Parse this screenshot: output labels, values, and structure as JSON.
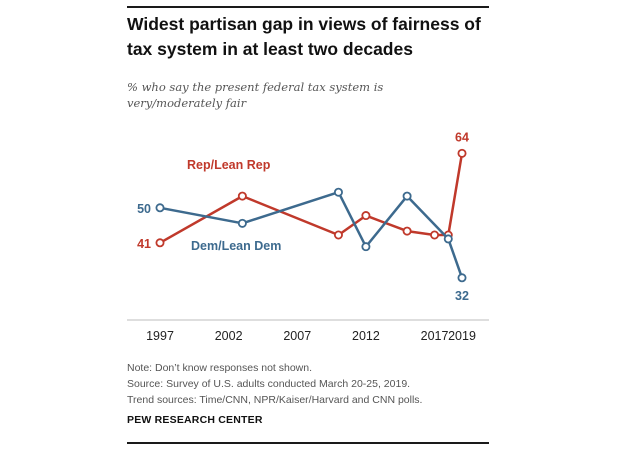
{
  "chart_data": {
    "type": "line",
    "title": "Widest partisan gap in views of fairness of tax system in at least two decades",
    "subtitle": "% who say the present federal tax system is very/moderately fair",
    "x_tick_labels": [
      "1997",
      "2002",
      "2007",
      "2012",
      "2017",
      "2019"
    ],
    "xlim": [
      1997,
      2019
    ],
    "ylim": [
      25,
      70
    ],
    "grid": false,
    "legend": "inline labels",
    "series": [
      {
        "name": "Rep/Lean Rep",
        "color": "#c0392b",
        "x": [
          1997,
          2003,
          2010,
          2012,
          2015,
          2017,
          2018,
          2019
        ],
        "y": [
          41,
          53,
          43,
          48,
          44,
          43,
          43,
          64
        ]
      },
      {
        "name": "Dem/Lean Dem",
        "color": "#3d6a8e",
        "x": [
          1997,
          2003,
          2010,
          2012,
          2015,
          2018,
          2019
        ],
        "y": [
          50,
          46,
          54,
          40,
          53,
          42,
          32
        ]
      }
    ],
    "data_labels": [
      {
        "series": 0,
        "point": 0,
        "text": "41",
        "anchor": "left"
      },
      {
        "series": 0,
        "point": 7,
        "text": "64",
        "anchor": "above"
      },
      {
        "series": 1,
        "point": 0,
        "text": "50",
        "anchor": "left"
      },
      {
        "series": 1,
        "point": 6,
        "text": "32",
        "anchor": "below"
      }
    ]
  },
  "notes": [
    "Note: Don’t know responses not shown.",
    "Source: Survey of U.S. adults conducted March 20-25, 2019.",
    "Trend sources: Time/CNN, NPR/Kaiser/Harvard and CNN polls."
  ],
  "org": "PEW RESEARCH CENTER"
}
